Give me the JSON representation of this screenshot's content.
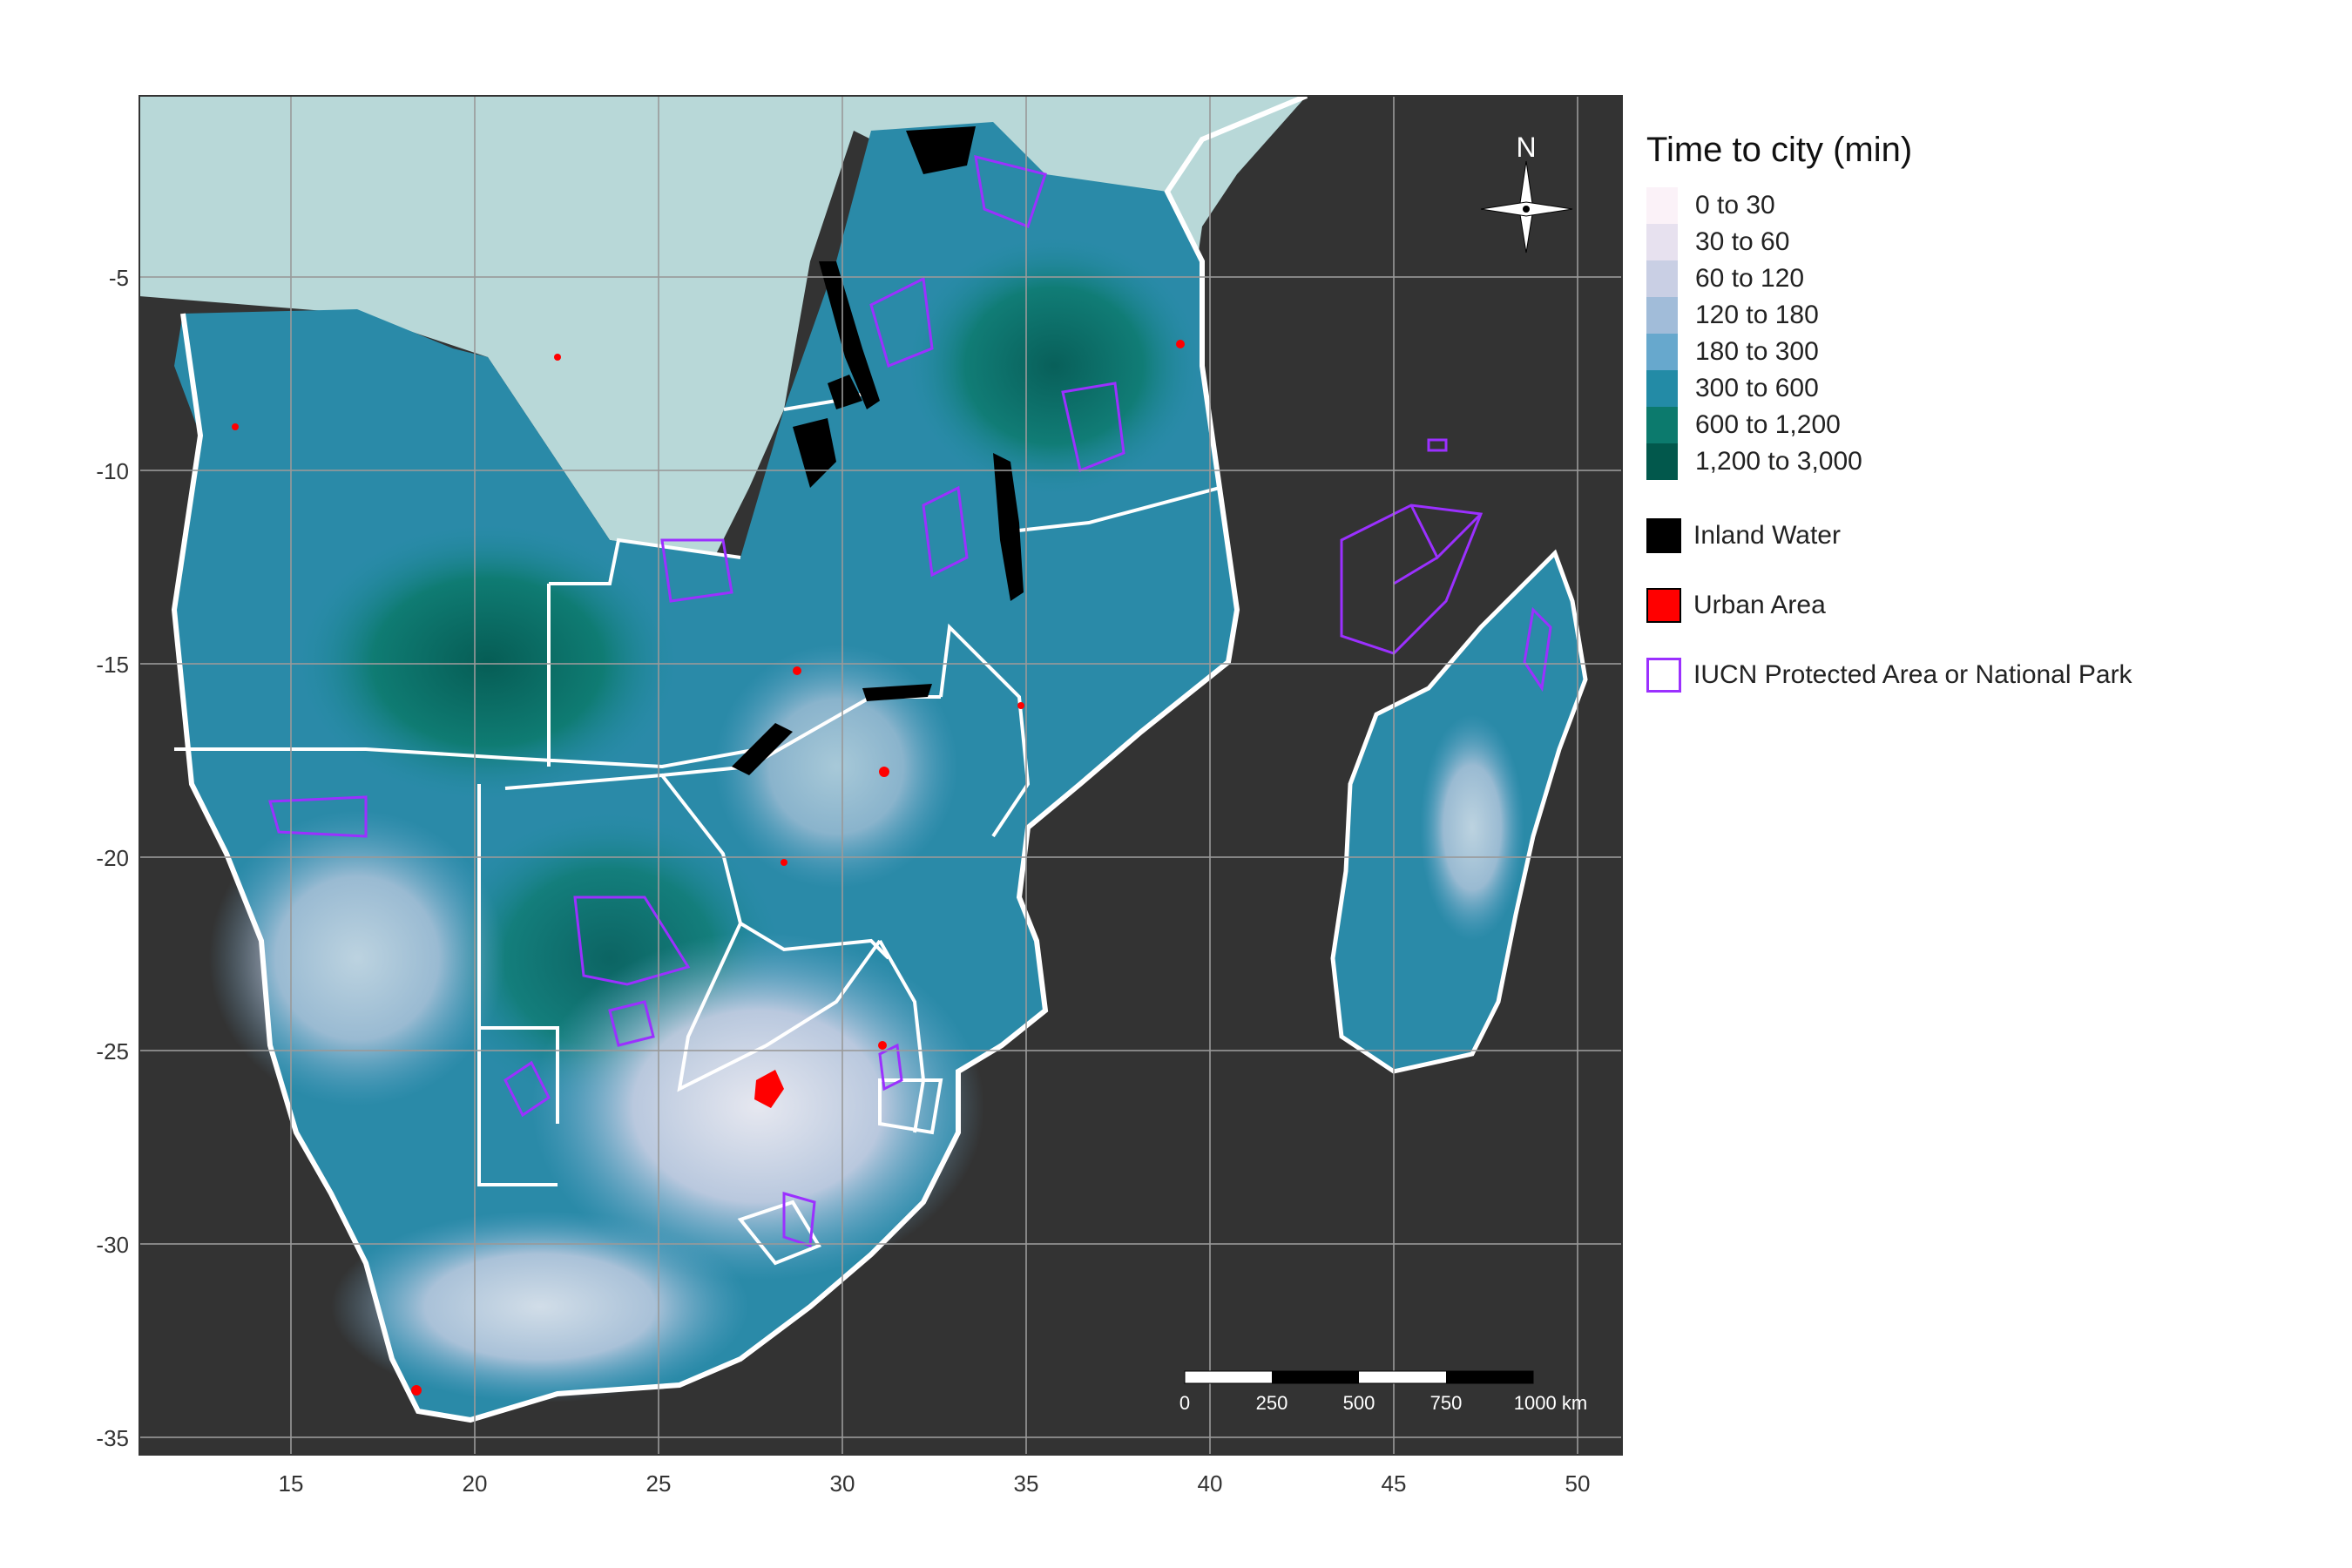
{
  "map": {
    "colors": {
      "panel_bg": "#333333",
      "grid": "#8c8c8c",
      "ocean": "#333333",
      "land_base": "#2a8aa8",
      "border": "#ffffff",
      "water": "#000000",
      "urban": "#ff0000",
      "protected": "#9b30ff",
      "outside_region": "#b8d8d8"
    },
    "x_ticks": [
      "15",
      "20",
      "25",
      "30",
      "35",
      "40",
      "45",
      "50"
    ],
    "y_ticks": [
      "-5",
      "-10",
      "-15",
      "-20",
      "-25",
      "-30",
      "-35"
    ],
    "north_arrow": {
      "label": "N",
      "icon": "north-arrow-icon"
    },
    "scale_bar": {
      "labels": [
        "0",
        "250",
        "500",
        "750",
        "1000 km"
      ]
    }
  },
  "legend": {
    "title": "Time to city (min)",
    "classes": [
      {
        "label": "0 to 30",
        "color": "#fbf2f8"
      },
      {
        "label": "30 to 60",
        "color": "#e7e1ef"
      },
      {
        "label": "60 to 120",
        "color": "#c9cfe4"
      },
      {
        "label": "120 to 180",
        "color": "#a1bcd9"
      },
      {
        "label": "180 to 300",
        "color": "#67a8cd"
      },
      {
        "label": "300 to 600",
        "color": "#238ba6"
      },
      {
        "label": "600 to 1,200",
        "color": "#0c7a6d"
      },
      {
        "label": "1,200 to 3,000",
        "color": "#02584c"
      }
    ],
    "inland_water": {
      "label": "Inland Water",
      "color": "#000000"
    },
    "urban_area": {
      "label": "Urban Area",
      "color": "#ff0000"
    },
    "protected_area": {
      "label": "IUCN Protected Area or National Park",
      "color": "#9b30ff"
    }
  }
}
